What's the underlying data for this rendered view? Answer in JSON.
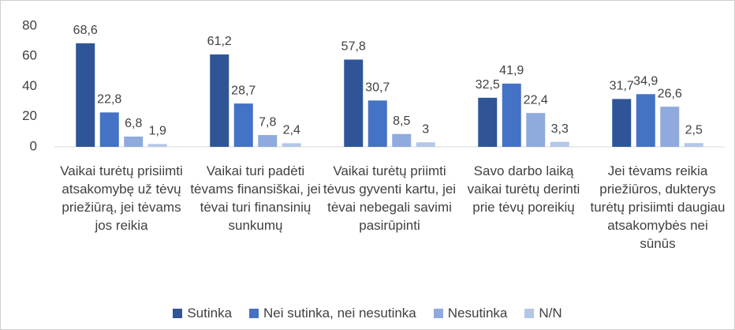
{
  "chart_data": {
    "type": "bar",
    "categories": [
      "Vaikai turėtų prisiimti atsakomybę už tėvų priežiūrą, jei tėvams jos reikia",
      "Vaikai turi padėti tėvams finansiškai, jei tėvai turi finansinių sunkumų",
      "Vaikai turėtų priimti tėvus gyventi kartu, jei tėvai nebegali savimi pasirūpinti",
      "Savo darbo laiką vaikai turėtų derinti prie tėvų poreikių",
      "Jei tėvams reikia priežiūros, dukterys turėtų prisiimti daugiau atsakomybės nei sūnūs"
    ],
    "series": [
      {
        "name": "Sutinka",
        "color": "#2f5597",
        "values": [
          68.6,
          61.2,
          57.8,
          32.5,
          31.7
        ],
        "value_labels": [
          "68,6",
          "61,2",
          "57,8",
          "32,5",
          "31,7"
        ]
      },
      {
        "name": "Nei sutinka, nei nesutinka",
        "color": "#4472c4",
        "values": [
          22.8,
          28.7,
          30.7,
          41.9,
          34.9
        ],
        "value_labels": [
          "22,8",
          "28,7",
          "30,7",
          "41,9",
          "34,9"
        ]
      },
      {
        "name": "Nesutinka",
        "color": "#8faadc",
        "values": [
          6.8,
          7.8,
          8.5,
          22.4,
          26.6
        ],
        "value_labels": [
          "6,8",
          "7,8",
          "8,5",
          "22,4",
          "26,6"
        ]
      },
      {
        "name": "N/N",
        "color": "#b4c7e7",
        "values": [
          1.9,
          2.4,
          3,
          3.3,
          2.5
        ],
        "value_labels": [
          "1,9",
          "2,4",
          "3",
          "3,3",
          "2,5"
        ]
      }
    ],
    "ylim": [
      0,
      80
    ],
    "yticks": [
      0,
      20,
      40,
      60,
      80
    ],
    "grid": false,
    "legend": "bottom"
  }
}
